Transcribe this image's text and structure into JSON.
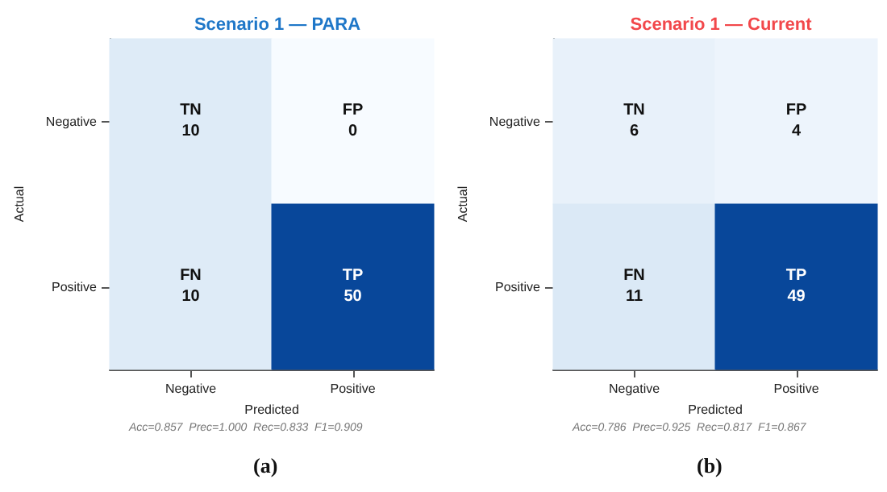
{
  "chart_data": [
    {
      "type": "heatmap",
      "title": "Scenario 1 — PARA",
      "xlabel": "Predicted",
      "ylabel": "Actual",
      "categories": [
        "Negative",
        "Positive"
      ],
      "y_categories": [
        "Negative",
        "Positive"
      ],
      "cells": [
        [
          10,
          0
        ],
        [
          10,
          50
        ]
      ],
      "data_labels": true,
      "annotations": [
        "TN",
        "FP",
        "FN",
        "TP",
        "Acc=0.857  Prec=1.000  Rec=0.833  F1=0.909",
        "(a)"
      ]
    },
    {
      "type": "heatmap",
      "title": "Scenario 1 — Current",
      "xlabel": "Predicted",
      "ylabel": "Actual",
      "categories": [
        "Negative",
        "Positive"
      ],
      "y_categories": [
        "Negative",
        "Positive"
      ],
      "cells": [
        [
          6,
          4
        ],
        [
          11,
          49
        ]
      ],
      "data_labels": true,
      "annotations": [
        "TN",
        "FP",
        "FN",
        "TP",
        "Acc=0.786  Prec=0.925  Rec=0.817  F1=0.867",
        "(b)"
      ]
    }
  ]
}
